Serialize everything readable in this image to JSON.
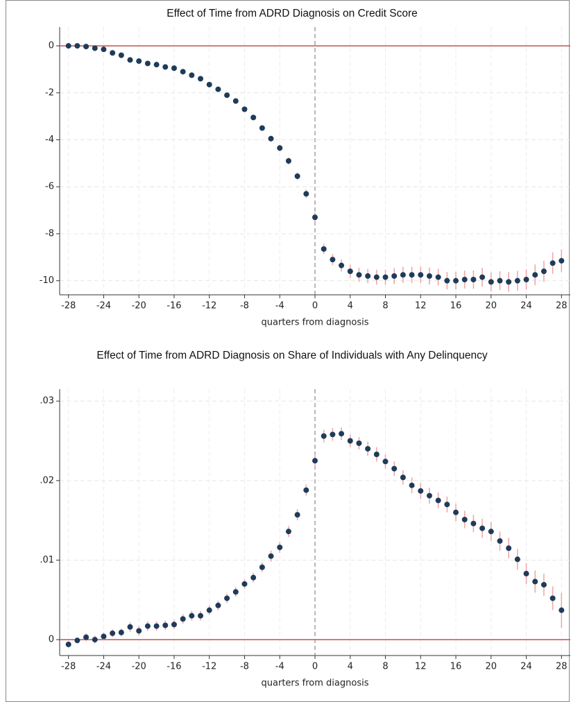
{
  "chart_data": [
    {
      "type": "scatter",
      "title": "Effect of Time from ADRD Diagnosis on Credit Score",
      "x_label": "quarters from diagnosis",
      "x": [
        -28,
        -27,
        -26,
        -25,
        -24,
        -23,
        -22,
        -21,
        -20,
        -19,
        -18,
        -17,
        -16,
        -15,
        -14,
        -13,
        -12,
        -11,
        -10,
        -9,
        -8,
        -7,
        -6,
        -5,
        -4,
        -3,
        -2,
        -1,
        0,
        1,
        2,
        3,
        4,
        5,
        6,
        7,
        8,
        9,
        10,
        11,
        12,
        13,
        14,
        15,
        16,
        17,
        18,
        19,
        20,
        21,
        22,
        23,
        24,
        25,
        26,
        27,
        28
      ],
      "values": [
        0,
        0,
        -0.03,
        -0.1,
        -0.15,
        -0.3,
        -0.4,
        -0.6,
        -0.65,
        -0.75,
        -0.8,
        -0.9,
        -0.95,
        -1.1,
        -1.25,
        -1.4,
        -1.65,
        -1.85,
        -2.1,
        -2.35,
        -2.7,
        -3.05,
        -3.5,
        -3.95,
        -4.35,
        -4.9,
        -5.55,
        -6.3,
        -7.3,
        -8.65,
        -9.1,
        -9.35,
        -9.6,
        -9.75,
        -9.8,
        -9.85,
        -9.85,
        -9.8,
        -9.75,
        -9.75,
        -9.75,
        -9.8,
        -9.85,
        -10,
        -10,
        -9.95,
        -9.95,
        -9.85,
        -10.05,
        -10,
        -10.05,
        -10,
        -9.95,
        -9.75,
        -9.6,
        -9.25,
        -9.15
      ],
      "errors": [
        0.03,
        0.03,
        0.03,
        0.04,
        0.04,
        0.04,
        0.05,
        0.05,
        0.05,
        0.06,
        0.06,
        0.06,
        0.07,
        0.07,
        0.08,
        0.08,
        0.09,
        0.09,
        0.1,
        0.1,
        0.11,
        0.11,
        0.12,
        0.13,
        0.14,
        0.15,
        0.16,
        0.18,
        0.2,
        0.22,
        0.24,
        0.26,
        0.28,
        0.3,
        0.3,
        0.32,
        0.32,
        0.34,
        0.34,
        0.35,
        0.35,
        0.36,
        0.36,
        0.37,
        0.38,
        0.38,
        0.39,
        0.4,
        0.4,
        0.4,
        0.42,
        0.42,
        0.43,
        0.44,
        0.45,
        0.46,
        0.48
      ],
      "color": "#1f3b5a",
      "error_color": "#f0a8a8",
      "xlim": [
        -29,
        29
      ],
      "xticks": [
        -28,
        -24,
        -20,
        -16,
        -12,
        -8,
        -4,
        0,
        4,
        8,
        12,
        16,
        20,
        24,
        28
      ],
      "ylim": [
        -10.6,
        0.8
      ],
      "yticks": [
        0,
        -2,
        -4,
        -6,
        -8,
        -10
      ],
      "hline": 0,
      "hline_color": "#c0504d",
      "vline": 0,
      "vline_color": "#888888",
      "grid": true
    },
    {
      "type": "scatter",
      "title": "Effect of Time from ADRD Diagnosis on Share of Individuals with Any Delinquency",
      "x_label": "quarters from diagnosis",
      "x": [
        -28,
        -27,
        -26,
        -25,
        -24,
        -23,
        -22,
        -21,
        -20,
        -19,
        -18,
        -17,
        -16,
        -15,
        -14,
        -13,
        -12,
        -11,
        -10,
        -9,
        -8,
        -7,
        -6,
        -5,
        -4,
        -3,
        -2,
        -1,
        0,
        1,
        2,
        3,
        4,
        5,
        6,
        7,
        8,
        9,
        10,
        11,
        12,
        13,
        14,
        15,
        16,
        17,
        18,
        19,
        20,
        21,
        22,
        23,
        24,
        25,
        26,
        27,
        28
      ],
      "values": [
        -0.0006,
        -0.0001,
        0.0003,
        0,
        0.0004,
        0.0008,
        0.0009,
        0.0016,
        0.0011,
        0.0017,
        0.0017,
        0.0018,
        0.0019,
        0.0026,
        0.003,
        0.003,
        0.0037,
        0.0043,
        0.0052,
        0.006,
        0.007,
        0.0078,
        0.0091,
        0.0105,
        0.0116,
        0.0136,
        0.0157,
        0.0188,
        0.0225,
        0.0256,
        0.0258,
        0.0259,
        0.025,
        0.0247,
        0.024,
        0.0233,
        0.0224,
        0.0215,
        0.0204,
        0.0194,
        0.0187,
        0.0181,
        0.0175,
        0.017,
        0.016,
        0.0151,
        0.0146,
        0.014,
        0.0136,
        0.0124,
        0.0115,
        0.0101,
        0.0083,
        0.0073,
        0.0069,
        0.0052,
        0.0037
      ],
      "errors": [
        0.0004,
        0.0004,
        0.0005,
        0.0005,
        0.0005,
        0.0005,
        0.0005,
        0.0006,
        0.0006,
        0.0006,
        0.0006,
        0.0006,
        0.0006,
        0.0006,
        0.0006,
        0.0006,
        0.0006,
        0.0006,
        0.0006,
        0.0006,
        0.0006,
        0.0006,
        0.0006,
        0.0007,
        0.0007,
        0.0007,
        0.0007,
        0.0007,
        0.0008,
        0.0008,
        0.0008,
        0.0008,
        0.0008,
        0.0008,
        0.0009,
        0.0009,
        0.0009,
        0.0009,
        0.0009,
        0.001,
        0.001,
        0.001,
        0.001,
        0.001,
        0.0011,
        0.0011,
        0.0011,
        0.0012,
        0.0012,
        0.0012,
        0.0013,
        0.0013,
        0.0013,
        0.0014,
        0.0014,
        0.0015,
        0.0022
      ],
      "color": "#1f3b5a",
      "error_color": "#f0a8a8",
      "xlim": [
        -29,
        29
      ],
      "xticks": [
        -28,
        -24,
        -20,
        -16,
        -12,
        -8,
        -4,
        0,
        4,
        8,
        12,
        16,
        20,
        24,
        28
      ],
      "ylim": [
        -0.002,
        0.0315
      ],
      "yticks": [
        0,
        {
          "value": 0.01,
          "label": ".01"
        },
        {
          "value": 0.02,
          "label": ".02"
        },
        {
          "value": 0.03,
          "label": ".03"
        }
      ],
      "hline": 0,
      "hline_color": "#c0504d",
      "vline": 0,
      "vline_color": "#888888",
      "grid": true
    }
  ]
}
